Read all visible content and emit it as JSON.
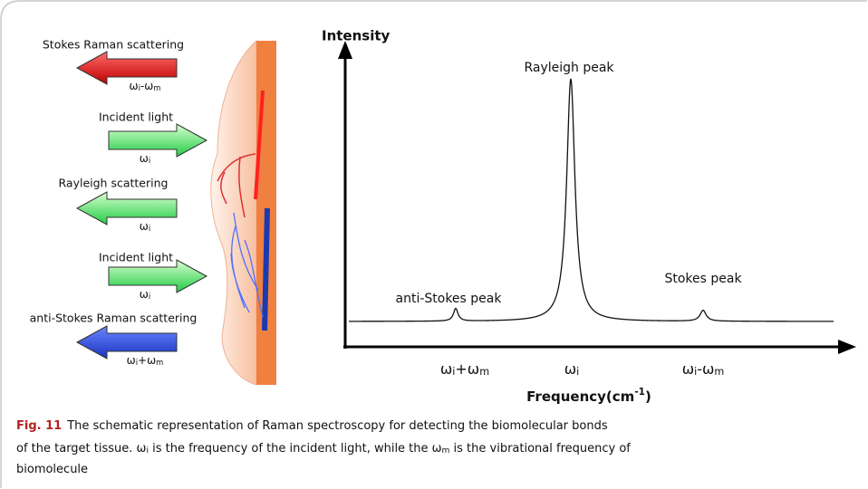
{
  "diagram": {
    "scattering": [
      {
        "label": "Stokes Raman scattering",
        "formula": [
          "ω",
          "i",
          "-ω",
          "m"
        ]
      },
      {
        "label": "Incident light",
        "formula": [
          "ω",
          "i"
        ]
      },
      {
        "label": "Rayleigh scattering",
        "formula": [
          "ω",
          "i"
        ]
      },
      {
        "label": "Incident light",
        "formula": [
          "ω",
          "i"
        ]
      },
      {
        "label": "anti-Stokes Raman scattering",
        "formula": [
          "ω",
          "i",
          "+ω",
          "m"
        ]
      }
    ],
    "spectrum": {
      "y_axis_label": "Intensity",
      "x_axis_label": [
        "Frequency(cm",
        "-1",
        ")"
      ],
      "peaks": [
        "anti-Stokes peak",
        "Rayleigh peak",
        "Stokes peak"
      ],
      "ticks": [
        [
          "ω",
          "i",
          "+ω",
          "m"
        ],
        [
          "ω",
          "i"
        ],
        [
          "ω",
          "i",
          "-ω",
          "m"
        ]
      ]
    }
  },
  "caption": {
    "label": "Fig. 11",
    "lines": [
      [
        "The schematic representation of Raman spectroscopy for detecting the biomolecular bonds"
      ],
      [
        "of the target tissue. ω",
        "i",
        " is the frequency of the incident light, while the ω",
        "m",
        " is the vibrational frequency of"
      ],
      [
        "biomolecule"
      ]
    ]
  }
}
